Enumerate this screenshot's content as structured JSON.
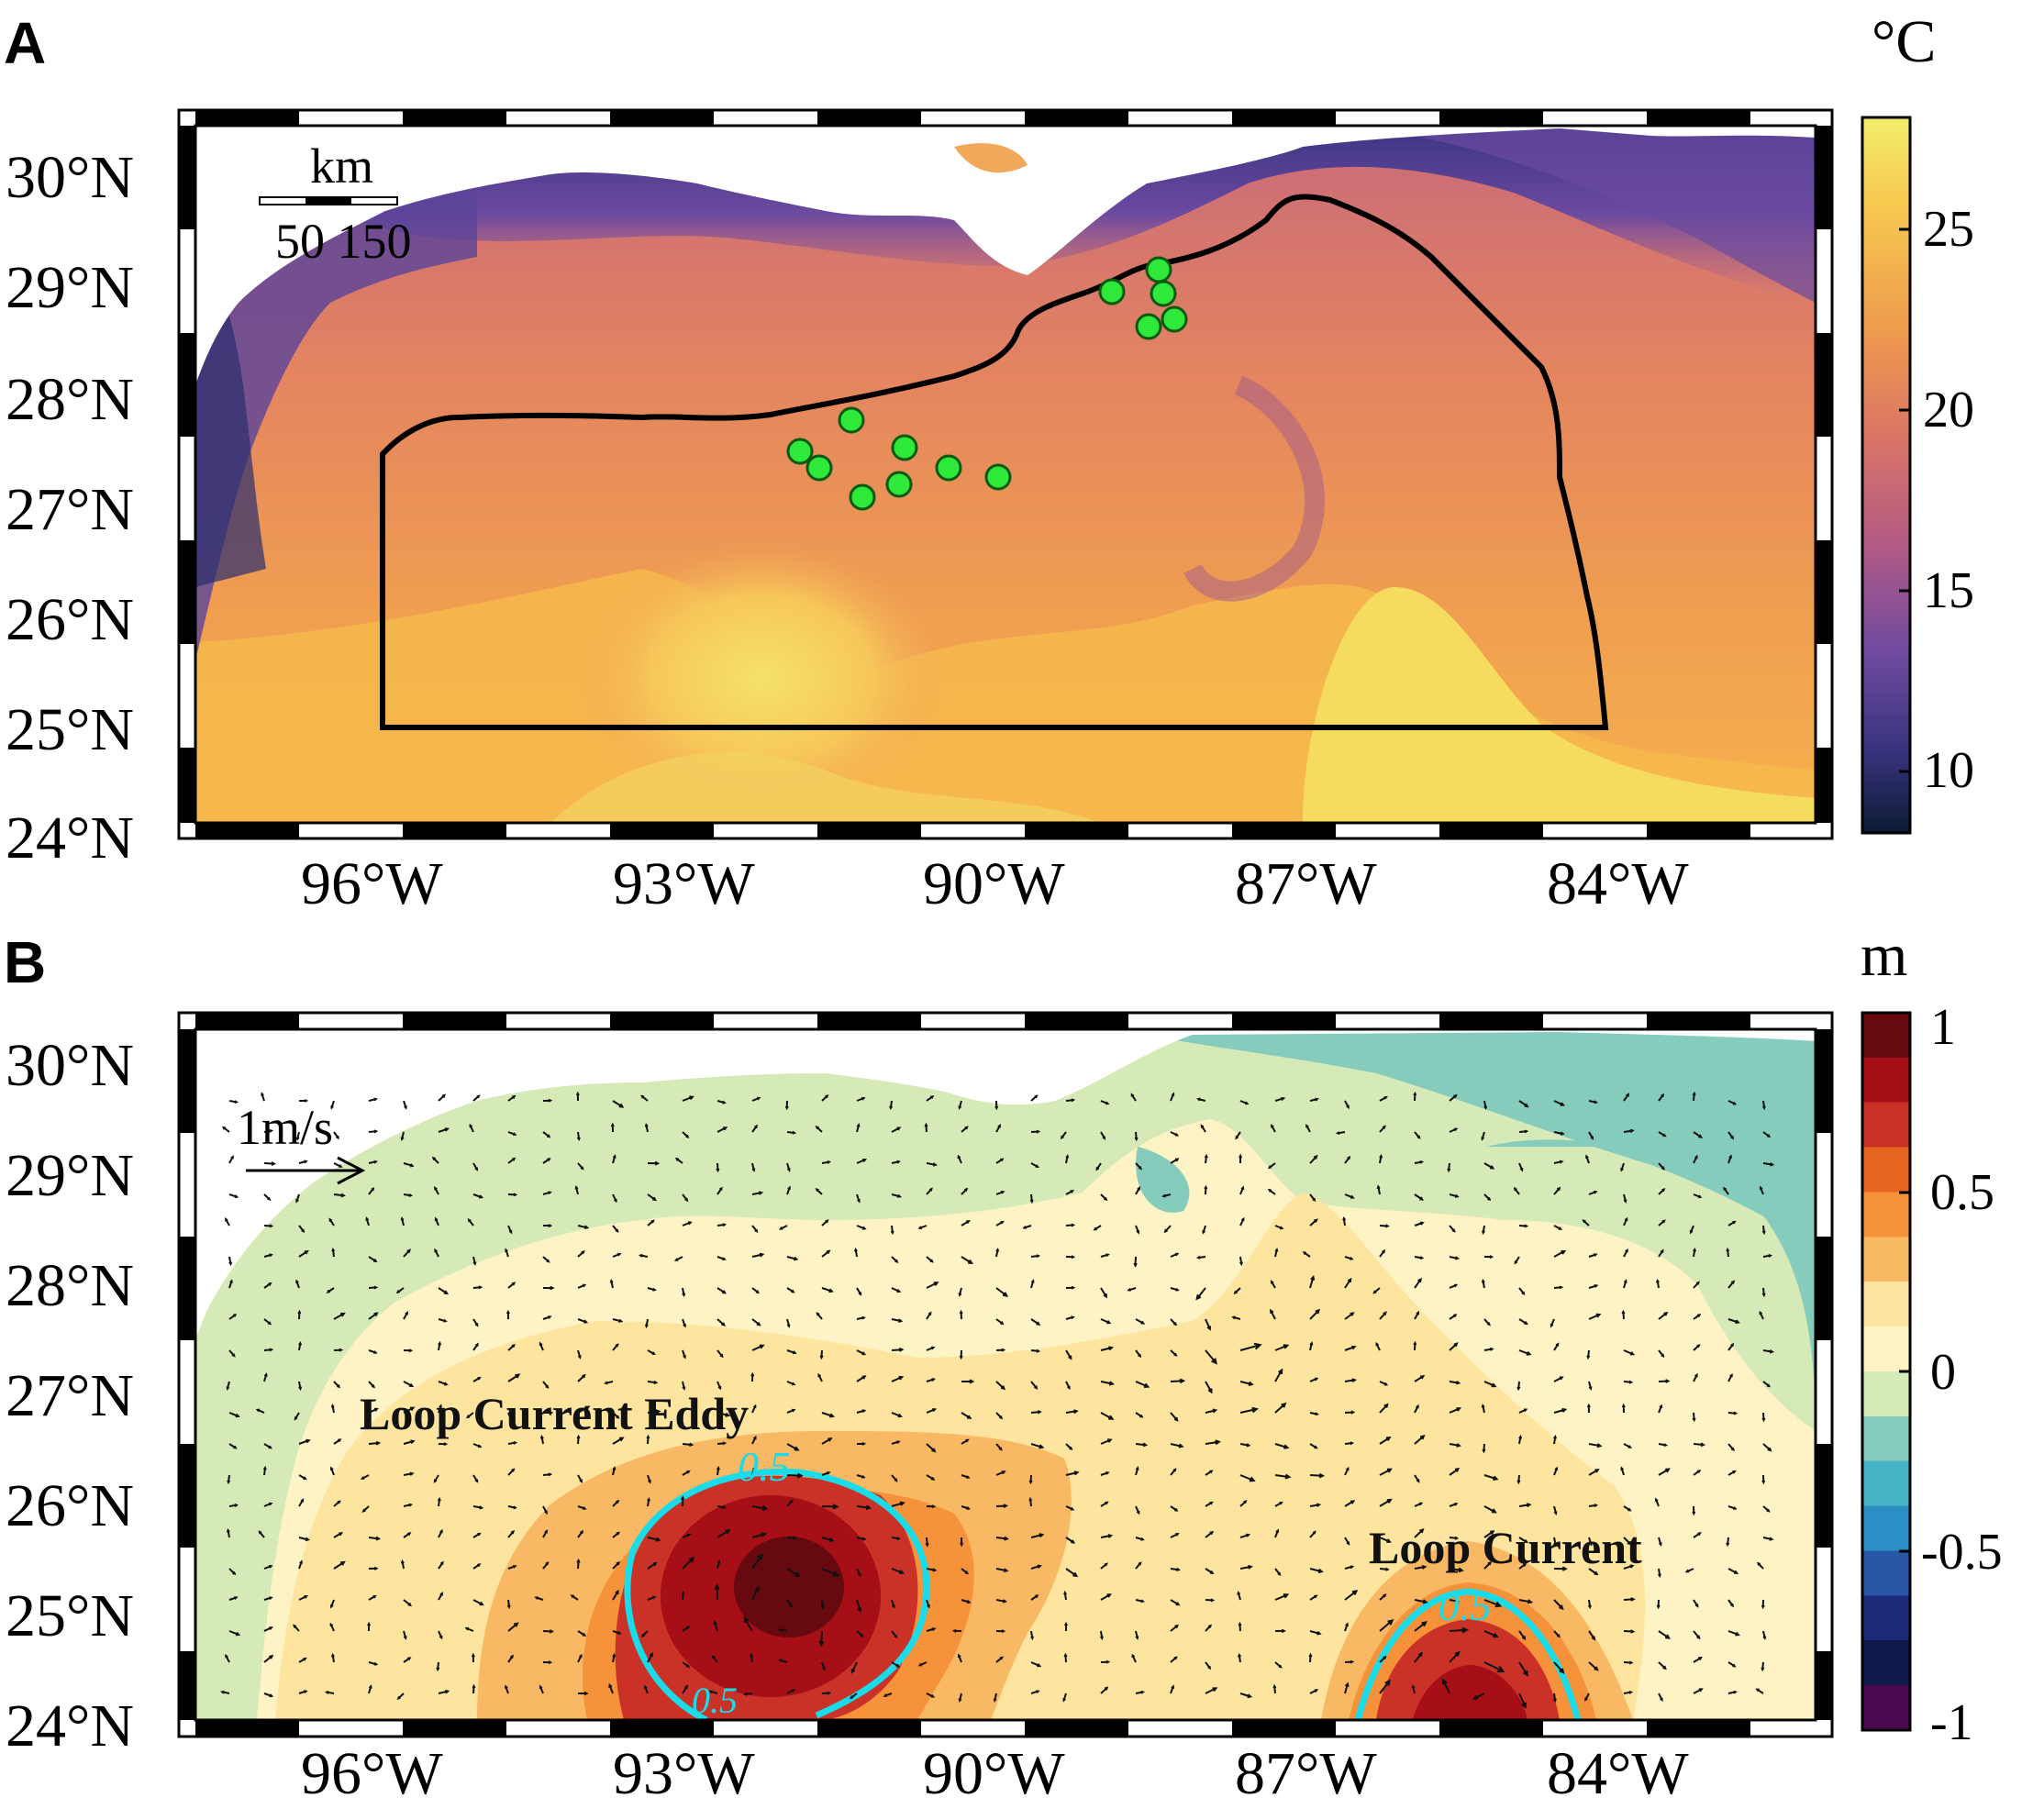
{
  "panel_a": {
    "letter": "A",
    "unit": "°C",
    "lat_labels": [
      "30°N",
      "29°N",
      "28°N",
      "27°N",
      "26°N",
      "25°N",
      "24°N"
    ],
    "lon_labels": [
      "96°W",
      "93°W",
      "90°W",
      "87°W",
      "84°W"
    ],
    "colorbar_ticks": [
      "25",
      "20",
      "15",
      "10"
    ],
    "scale_bar": {
      "unit": "km",
      "labels": "50 150"
    },
    "colormap": [
      "#f2ee6e",
      "#f6b24a",
      "#e4885a",
      "#c7687a",
      "#8a4f98",
      "#4a3e8a",
      "#0f1e3e"
    ]
  },
  "panel_b": {
    "letter": "B",
    "unit": "m",
    "lat_labels": [
      "30°N",
      "29°N",
      "28°N",
      "27°N",
      "26°N",
      "25°N",
      "24°N"
    ],
    "lon_labels": [
      "96°W",
      "93°W",
      "90°W",
      "87°W",
      "84°W"
    ],
    "colorbar_ticks": [
      "1",
      "0.5",
      "0",
      "-0.5",
      "-1"
    ],
    "vector_scale": "1m/s",
    "annotations": {
      "eddy": "Loop Current Eddy",
      "current": "Loop Current"
    },
    "contour_labels": {
      "eddy": "0.5",
      "eddy_bottom": "0.5",
      "current": "0.5"
    },
    "colormap": [
      "#670a10",
      "#a50f15",
      "#cb3227",
      "#e6651f",
      "#f6923a",
      "#f9b863",
      "#fde59f",
      "#fef3c4",
      "#d6eab8",
      "#86ccbd",
      "#47b3c6",
      "#2b8fc6",
      "#2857a8",
      "#1c2a78",
      "#0d1a4a",
      "#4b0a4f"
    ],
    "contour_color": "#19dcea"
  }
}
